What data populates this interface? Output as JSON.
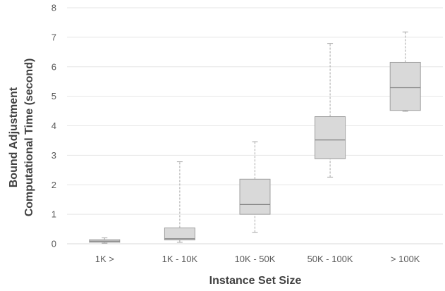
{
  "chart_data": {
    "type": "box",
    "title": "",
    "xlabel": "Instance Set Size",
    "ylabel_lines": [
      "Bound Adjustment",
      "Computational Time  (second)"
    ],
    "ylim": [
      0,
      8
    ],
    "yticks": [
      0,
      1,
      2,
      3,
      4,
      5,
      6,
      7,
      8
    ],
    "grid": true,
    "colors": {
      "box_fill": "#d9d9d9",
      "box_stroke": "#9f9f9f",
      "median": "#7f7f7f",
      "whisker": "#a6a6a6",
      "grid": "#e6e6e6",
      "tick_text": "#595959",
      "title_text": "#404040"
    },
    "categories": [
      "1K >",
      "1K - 10K",
      "10K - 50K",
      "50K - 100K",
      "> 100K"
    ],
    "boxes": [
      {
        "min": 0.02,
        "q1": 0.05,
        "median": 0.09,
        "q3": 0.14,
        "max": 0.2
      },
      {
        "min": 0.05,
        "q1": 0.13,
        "median": 0.17,
        "q3": 0.54,
        "max": 2.78
      },
      {
        "min": 0.39,
        "q1": 1.0,
        "median": 1.33,
        "q3": 2.19,
        "max": 3.46
      },
      {
        "min": 2.26,
        "q1": 2.88,
        "median": 3.52,
        "q3": 4.31,
        "max": 6.79
      },
      {
        "min": 4.49,
        "q1": 4.52,
        "median": 5.29,
        "q3": 6.15,
        "max": 7.18
      }
    ]
  }
}
